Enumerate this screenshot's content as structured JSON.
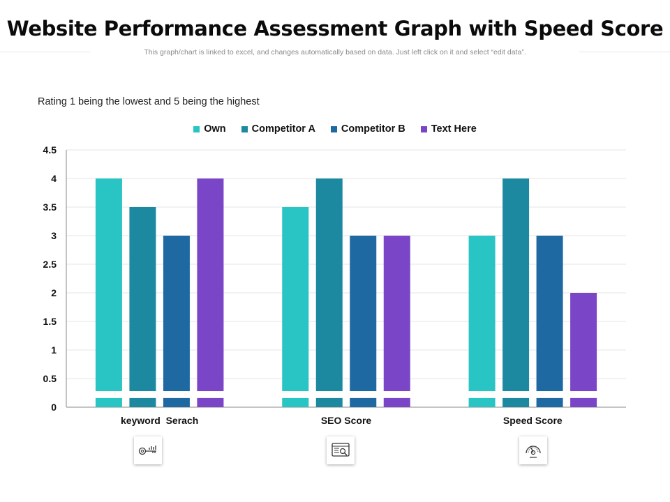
{
  "page": {
    "title": "Website Performance Assessment Graph with Speed Score",
    "subtitle": "This graph/chart is linked to excel, and changes automatically based on data. Just left click on it and select “edit data”.",
    "note": "Rating 1 being the lowest and 5 being the highest"
  },
  "icons": [
    "key-chart-icon",
    "seo-monitor-icon",
    "speedometer-icon"
  ],
  "chart_data": {
    "type": "bar",
    "categories": [
      "keyword  Serach",
      "SEO Score",
      "Speed Score"
    ],
    "series": [
      {
        "name": "Own",
        "color": "#29c4c4",
        "values": [
          4,
          3.5,
          3
        ]
      },
      {
        "name": "Competitor A",
        "color": "#1d89a1",
        "values": [
          3.5,
          4,
          4
        ]
      },
      {
        "name": "Competitor B",
        "color": "#1f69a3",
        "values": [
          3,
          3,
          3
        ]
      },
      {
        "name": "Text Here",
        "color": "#7b45c8",
        "values": [
          4,
          3,
          2
        ]
      }
    ],
    "ylim": [
      0,
      4.5
    ],
    "yticks": [
      "0",
      "0.5",
      "1",
      "1.5",
      "2",
      "2.5",
      "3",
      "3.5",
      "4",
      "4.5"
    ],
    "grid": true,
    "legend_position": "top"
  }
}
